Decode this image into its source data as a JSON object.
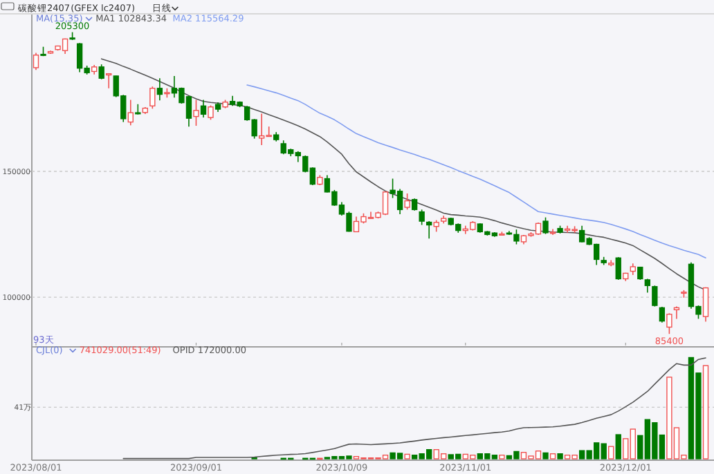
{
  "chart_data": [
    {
      "type": "candlestick",
      "title": "碳酸锂2407",
      "subtitle": "(GFEX lc2407)",
      "legend_title": "MA(15,35)",
      "legend": "top left",
      "grid": "y",
      "tick_labels": "y",
      "annotations": [
        "日线",
        {
          "text": "205300",
          "y": 205300
        },
        {
          "text": "85400",
          "y": 85400
        },
        "93天"
      ],
      "ylim": [
        80800,
        212600
      ],
      "yticks": [
        100000,
        150000
      ],
      "categories": [
        "2023/08/01",
        null,
        null,
        null,
        null,
        null,
        null,
        null,
        null,
        null,
        null,
        null,
        null,
        null,
        null,
        null,
        null,
        null,
        null,
        null,
        null,
        null,
        "2023/09/01",
        null,
        null,
        null,
        null,
        null,
        null,
        null,
        null,
        null,
        null,
        null,
        null,
        null,
        null,
        null,
        null,
        null,
        null,
        null,
        "2023/10/09",
        null,
        null,
        null,
        null,
        null,
        null,
        null,
        null,
        null,
        null,
        null,
        null,
        null,
        null,
        null,
        null,
        "2023/11/01",
        null,
        null,
        null,
        null,
        null,
        null,
        null,
        null,
        null,
        null,
        null,
        null,
        null,
        null,
        null,
        null,
        null,
        null,
        null,
        null,
        null,
        "2023/12/01",
        null,
        null,
        null,
        null,
        null,
        null,
        null,
        null,
        null,
        null,
        null
      ],
      "ohlc": [
        [
          191200,
          197100,
          190300,
          196200
        ],
        [
          196500,
          199500,
          195800,
          196300
        ],
        [
          197000,
          198000,
          196700,
          197600
        ],
        [
          198400,
          200000,
          198000,
          199800
        ],
        [
          198000,
          202800,
          196700,
          202600
        ],
        [
          203000,
          205300,
          202200,
          202600
        ],
        [
          200700,
          201000,
          189400,
          191000
        ],
        [
          191000,
          192000,
          188500,
          189200
        ],
        [
          189700,
          192300,
          188500,
          191500
        ],
        [
          191500,
          192500,
          186600,
          187000
        ],
        [
          188300,
          189000,
          183000,
          188800
        ],
        [
          187900,
          188000,
          179500,
          180000
        ],
        [
          180000,
          180400,
          169600,
          170900
        ],
        [
          169600,
          178400,
          168300,
          173300
        ],
        [
          173300,
          176700,
          172600,
          173000
        ],
        [
          173400,
          175500,
          172800,
          175100
        ],
        [
          176000,
          183700,
          174900,
          183000
        ],
        [
          183000,
          187000,
          178200,
          180600
        ],
        [
          181000,
          183000,
          179300,
          181300
        ],
        [
          183000,
          187900,
          179300,
          181100
        ],
        [
          183000,
          183300,
          176900,
          177300
        ],
        [
          179700,
          180000,
          167800,
          171100
        ],
        [
          171800,
          178400,
          168100,
          174200
        ],
        [
          176000,
          178400,
          171400,
          172700
        ],
        [
          171400,
          176200,
          170500,
          175600
        ],
        [
          176600,
          177400,
          173600,
          174700
        ],
        [
          175600,
          178400,
          175100,
          177500
        ],
        [
          177800,
          180000,
          176000,
          176600
        ],
        [
          177500,
          177800,
          175500,
          176000
        ],
        [
          175600,
          176000,
          170100,
          170500
        ],
        [
          170500,
          170800,
          163000,
          164100
        ],
        [
          163200,
          172900,
          160400,
          164100
        ],
        [
          164000,
          167800,
          163800,
          164300
        ],
        [
          164500,
          165600,
          161900,
          162600
        ],
        [
          161000,
          162300,
          156800,
          157300
        ],
        [
          158600,
          159000,
          156000,
          157100
        ],
        [
          157500,
          158000,
          153700,
          156200
        ],
        [
          155900,
          156300,
          149600,
          150000
        ],
        [
          151300,
          151600,
          144500,
          144900
        ],
        [
          144900,
          148500,
          144500,
          147600
        ],
        [
          147100,
          148500,
          141600,
          141800
        ],
        [
          141900,
          142600,
          136300,
          136600
        ],
        [
          136600,
          137800,
          132400,
          133000
        ],
        [
          133300,
          134000,
          126000,
          126200
        ],
        [
          126000,
          132000,
          125900,
          130100
        ],
        [
          129900,
          133300,
          129300,
          132000
        ],
        [
          131500,
          133900,
          131100,
          131700
        ],
        [
          131700,
          134000,
          131300,
          133500
        ],
        [
          133000,
          142000,
          132600,
          141800
        ],
        [
          142500,
          147100,
          139400,
          141200
        ],
        [
          142100,
          143000,
          133000,
          134800
        ],
        [
          135700,
          141200,
          134800,
          138300
        ],
        [
          138800,
          139200,
          134400,
          134800
        ],
        [
          133900,
          134800,
          128700,
          130200
        ],
        [
          129800,
          130200,
          123300,
          128700
        ],
        [
          128100,
          130600,
          126000,
          129700
        ],
        [
          130200,
          132400,
          129300,
          131300
        ],
        [
          131300,
          131600,
          128500,
          128900
        ],
        [
          128900,
          129300,
          125600,
          126500
        ],
        [
          126500,
          128400,
          125100,
          127100
        ],
        [
          126900,
          130200,
          126500,
          129700
        ],
        [
          129100,
          129300,
          125600,
          126000
        ],
        [
          126000,
          126300,
          124500,
          124900
        ],
        [
          125500,
          125800,
          124000,
          124400
        ],
        [
          124800,
          126000,
          124500,
          125100
        ],
        [
          125500,
          126300,
          124700,
          125100
        ],
        [
          124900,
          126900,
          121000,
          122300
        ],
        [
          122000,
          124700,
          121000,
          124400
        ],
        [
          124500,
          125800,
          124000,
          125100
        ],
        [
          125100,
          129700,
          124700,
          129300
        ],
        [
          130200,
          131700,
          125100,
          125600
        ],
        [
          125500,
          127100,
          124700,
          125800
        ],
        [
          127300,
          128400,
          125300,
          125800
        ],
        [
          126600,
          128400,
          125600,
          127100
        ],
        [
          126700,
          128200,
          125600,
          126900
        ],
        [
          126500,
          128400,
          121800,
          122000
        ],
        [
          123300,
          123800,
          120700,
          121000
        ],
        [
          121000,
          121200,
          112800,
          115000
        ],
        [
          114600,
          116000,
          112800,
          113700
        ],
        [
          112900,
          114700,
          112300,
          113500
        ],
        [
          115600,
          115900,
          106900,
          107300
        ],
        [
          107300,
          109700,
          106400,
          109500
        ],
        [
          110300,
          113400,
          108800,
          112100
        ],
        [
          111900,
          112100,
          106900,
          107300
        ],
        [
          106900,
          107300,
          101800,
          104600
        ],
        [
          104200,
          104600,
          96300,
          96700
        ],
        [
          95800,
          96200,
          89900,
          90500
        ],
        [
          88100,
          93600,
          85400,
          93200
        ],
        [
          95000,
          96300,
          91400,
          95800
        ],
        [
          101600,
          102800,
          99800,
          102000
        ],
        [
          113100,
          113800,
          95400,
          96300
        ],
        [
          96300,
          96700,
          91400,
          93200
        ],
        [
          92300,
          103900,
          90300,
          103700
        ]
      ],
      "colors": [
        "#f05050",
        "#007a00",
        "#f05050",
        "#f05050",
        "#f05050",
        "#007a00",
        "#007a00",
        "#007a00",
        "#f05050",
        "#007a00",
        "#f05050",
        "#007a00",
        "#007a00",
        "#f05050",
        "#007a00",
        "#f05050",
        "#f05050",
        "#007a00",
        "#f05050",
        "#007a00",
        "#007a00",
        "#007a00",
        "#f05050",
        "#007a00",
        "#f05050",
        "#007a00",
        "#f05050",
        "#007a00",
        "#007a00",
        "#007a00",
        "#007a00",
        "#f05050",
        "#f05050",
        "#007a00",
        "#007a00",
        "#007a00",
        "#007a00",
        "#007a00",
        "#007a00",
        "#f05050",
        "#007a00",
        "#007a00",
        "#007a00",
        "#007a00",
        "#f05050",
        "#f05050",
        "#f05050",
        "#f05050",
        "#f05050",
        "#007a00",
        "#007a00",
        "#f05050",
        "#007a00",
        "#007a00",
        "#007a00",
        "#f05050",
        "#f05050",
        "#007a00",
        "#007a00",
        "#f05050",
        "#f05050",
        "#007a00",
        "#007a00",
        "#007a00",
        "#f05050",
        "#007a00",
        "#007a00",
        "#f05050",
        "#f05050",
        "#f05050",
        "#007a00",
        "#f05050",
        "#007a00",
        "#f05050",
        "#f05050",
        "#007a00",
        "#007a00",
        "#007a00",
        "#007a00",
        "#f05050",
        "#007a00",
        "#f05050",
        "#f05050",
        "#007a00",
        "#007a00",
        "#007a00",
        "#007a00",
        "#f05050",
        "#f05050",
        "#f05050",
        "#007a00",
        "#007a00",
        "#f05050"
      ],
      "series": [
        {
          "type": "line",
          "name": "MA1 102843.34",
          "color": "#555555",
          "values": [
            null,
            null,
            null,
            null,
            null,
            null,
            null,
            null,
            null,
            194700,
            193800,
            192900,
            191700,
            190600,
            189400,
            188200,
            187000,
            185700,
            184400,
            183100,
            181500,
            180100,
            178800,
            177800,
            177400,
            177100,
            176800,
            176500,
            176200,
            175600,
            174600,
            173600,
            172500,
            171500,
            170400,
            169300,
            168100,
            166800,
            165300,
            163800,
            161700,
            159300,
            156800,
            153000,
            149800,
            147800,
            145800,
            143900,
            142200,
            141000,
            140000,
            138900,
            137900,
            136800,
            135700,
            134600,
            133400,
            132800,
            132600,
            132300,
            132100,
            131800,
            131200,
            130400,
            129500,
            128700,
            127900,
            127200,
            126600,
            126300,
            126100,
            125900,
            125800,
            125700,
            125600,
            125200,
            124700,
            124200,
            123800,
            123000,
            122300,
            121500,
            120500,
            118800,
            117100,
            115400,
            113400,
            111300,
            109300,
            107500,
            105700,
            104100,
            102800
          ]
        },
        {
          "type": "line",
          "name": "MA2 115564.29",
          "color": "#7f9cf0",
          "values": [
            null,
            null,
            null,
            null,
            null,
            null,
            null,
            null,
            null,
            null,
            null,
            null,
            null,
            null,
            null,
            null,
            null,
            null,
            null,
            null,
            null,
            null,
            null,
            null,
            null,
            null,
            null,
            null,
            null,
            184300,
            183600,
            182800,
            182000,
            181200,
            180200,
            179100,
            178100,
            176600,
            174800,
            173100,
            171900,
            170500,
            168700,
            166800,
            165000,
            163800,
            162600,
            161400,
            160400,
            159500,
            158500,
            157600,
            156700,
            155700,
            154800,
            153700,
            152600,
            151500,
            150300,
            149200,
            148000,
            146900,
            145600,
            144300,
            142900,
            141600,
            139700,
            137800,
            135900,
            134000,
            133500,
            133000,
            132500,
            132000,
            131500,
            131000,
            130600,
            130200,
            129700,
            128900,
            128000,
            127100,
            126100,
            124900,
            123800,
            122600,
            121500,
            120500,
            119600,
            118600,
            117800,
            117000,
            115600
          ]
        }
      ]
    },
    {
      "type": "bar",
      "legend_title": "CJL(0)",
      "legend": "top left",
      "grid": "y",
      "ylim": [
        0,
        89
      ],
      "yticks": [
        {
          "value": 41,
          "label": "41万"
        }
      ],
      "categories": [
        "2023/08/01",
        null,
        null,
        null,
        null,
        null,
        null,
        null,
        null,
        null,
        null,
        null,
        null,
        null,
        null,
        null,
        null,
        null,
        null,
        null,
        null,
        null,
        "2023/09/01",
        null,
        null,
        null,
        null,
        null,
        null,
        null,
        null,
        null,
        null,
        null,
        null,
        null,
        null,
        null,
        null,
        null,
        null,
        null,
        "2023/10/09",
        null,
        null,
        null,
        null,
        null,
        null,
        null,
        null,
        null,
        null,
        null,
        null,
        null,
        null,
        null,
        null,
        "2023/11/01",
        null,
        null,
        null,
        null,
        null,
        null,
        null,
        null,
        null,
        null,
        null,
        null,
        null,
        null,
        null,
        null,
        null,
        null,
        null,
        null,
        null,
        "2023/12/01",
        null,
        null,
        null,
        null,
        null,
        null,
        null,
        null,
        null,
        null,
        null
      ],
      "series": [
        {
          "type": "bar",
          "name": "741029.00(51:49)",
          "values": [
            null,
            null,
            null,
            null,
            null,
            null,
            null,
            null,
            null,
            null,
            null,
            null,
            null,
            null,
            null,
            null,
            null,
            null,
            null,
            null,
            null,
            null,
            null,
            null,
            null,
            null,
            null,
            null,
            null,
            null,
            0.7,
            null,
            null,
            null,
            0.4,
            0.4,
            null,
            0.4,
            0.4,
            0.4,
            1.1,
            1.8,
            1.8,
            2.2,
            1.8,
            0.7,
            0.7,
            0.7,
            2.9,
            4.7,
            4.4,
            3.6,
            2.9,
            4,
            7.3,
            7.3,
            4,
            3.3,
            3.6,
            3.6,
            2.9,
            4,
            4,
            2.9,
            2.9,
            2.5,
            5.8,
            5.1,
            2.2,
            6.2,
            4.7,
            4,
            4,
            2.9,
            2.9,
            6.5,
            6.5,
            12.7,
            12,
            9.8,
            19.2,
            16,
            23.6,
            18.5,
            31.2,
            28.7,
            18.9,
            64.9,
            24.7,
            2.9,
            80.5,
            68.2,
            74.1
          ],
          "colors": [
            null,
            null,
            null,
            null,
            null,
            null,
            null,
            null,
            null,
            null,
            null,
            null,
            null,
            null,
            null,
            null,
            null,
            null,
            null,
            null,
            null,
            null,
            null,
            null,
            null,
            null,
            null,
            null,
            null,
            null,
            "#007a00",
            null,
            null,
            null,
            "#007a00",
            "#007a00",
            null,
            "#007a00",
            "#007a00",
            "#f05050",
            "#007a00",
            "#007a00",
            "#007a00",
            "#007a00",
            "#f05050",
            "#f05050",
            "#f05050",
            "#f05050",
            "#f05050",
            "#007a00",
            "#007a00",
            "#f05050",
            "#007a00",
            "#007a00",
            "#007a00",
            "#f05050",
            "#f05050",
            "#007a00",
            "#007a00",
            "#f05050",
            "#f05050",
            "#007a00",
            "#007a00",
            "#007a00",
            "#f05050",
            "#007a00",
            "#007a00",
            "#f05050",
            "#f05050",
            "#f05050",
            "#007a00",
            "#f05050",
            "#007a00",
            "#f05050",
            "#f05050",
            "#007a00",
            "#007a00",
            "#007a00",
            "#007a00",
            "#f05050",
            "#007a00",
            "#f05050",
            "#f05050",
            "#007a00",
            "#007a00",
            "#007a00",
            "#007a00",
            "#f05050",
            "#f05050",
            "#f05050",
            "#007a00",
            "#007a00",
            "#f05050"
          ]
        },
        {
          "type": "line",
          "name": "OPID 172000.00",
          "color": "#555555",
          "values": [
            null,
            null,
            null,
            null,
            null,
            null,
            null,
            null,
            null,
            null,
            null,
            null,
            0.2,
            0.2,
            0.2,
            0.2,
            0.2,
            0.2,
            0.2,
            0.2,
            0.2,
            0.2,
            1.1,
            1.1,
            1.1,
            1.1,
            1.1,
            1.1,
            1.1,
            1.1,
            1.4,
            1.9,
            2.4,
            2.9,
            3.2,
            3.5,
            3.7,
            4.1,
            5,
            6,
            7,
            8.1,
            9.9,
            11.6,
            11.8,
            11.5,
            11.3,
            11.6,
            11.9,
            12.2,
            12.6,
            13.4,
            14.1,
            14.9,
            15.6,
            16.2,
            16.8,
            17.3,
            17.9,
            18.5,
            19,
            19.6,
            20.2,
            20.8,
            21.3,
            22.1,
            23.6,
            24.7,
            24.9,
            25,
            25.2,
            25.4,
            26,
            26.7,
            27.4,
            28.8,
            30.5,
            32.3,
            33.7,
            35.1,
            38,
            41.4,
            45,
            49.2,
            53.6,
            59.4,
            65.2,
            70.9,
            75.7,
            74.5,
            74.5,
            79,
            80.2
          ]
        }
      ]
    }
  ]
}
